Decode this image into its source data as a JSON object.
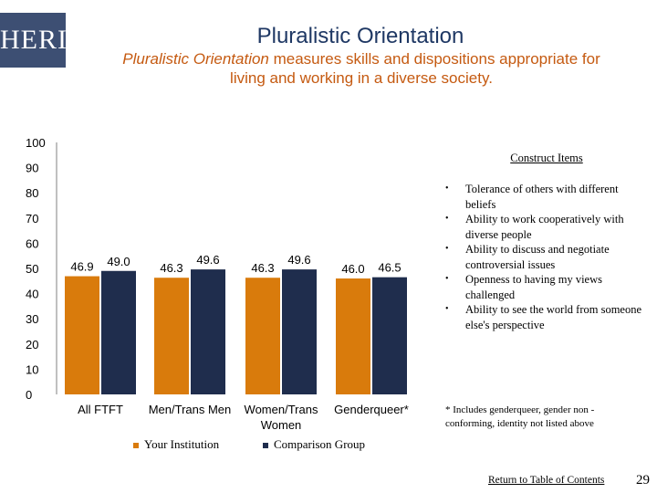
{
  "logo": {
    "text": "HERI"
  },
  "header": {
    "title": "Pluralistic Orientation",
    "subtitle_italic": "Pluralistic Orientation",
    "subtitle_line1_rest": " measures skills and dispositions appropriate for",
    "subtitle_line2": "living and working in a diverse society."
  },
  "colors": {
    "institution": "#d97b0c",
    "comparison": "#1f2d4d",
    "axis": "#808080"
  },
  "chart_data": {
    "type": "bar",
    "categories": [
      "All FTFT",
      "Men/Trans Men",
      "Women/Trans Women",
      "Genderqueer*"
    ],
    "series": [
      {
        "name": "Your Institution",
        "values": [
          46.9,
          46.3,
          46.3,
          46.0
        ]
      },
      {
        "name": "Comparison Group",
        "values": [
          49.0,
          49.6,
          49.6,
          46.5
        ]
      }
    ],
    "value_labels": [
      [
        "46.9",
        "49.0"
      ],
      [
        "46.3",
        "49.6"
      ],
      [
        "46.3",
        "49.6"
      ],
      [
        "46.0",
        "46.5"
      ]
    ],
    "ylim": [
      0,
      100
    ],
    "yticks": [
      0,
      10,
      20,
      30,
      40,
      50,
      60,
      70,
      80,
      90,
      100
    ],
    "ytick_labels": [
      "0",
      "10",
      "20",
      "30",
      "40",
      "50",
      "60",
      "70",
      "80",
      "90",
      "100"
    ],
    "category_labels": [
      [
        "All FTFT"
      ],
      [
        "Men/Trans Men"
      ],
      [
        "Women/Trans",
        "Women"
      ],
      [
        "Genderqueer*"
      ]
    ],
    "legend": [
      "Your Institution",
      "Comparison Group"
    ],
    "legend_position": "bottom"
  },
  "construct": {
    "heading": "Construct Items",
    "items": [
      "Tolerance of others with different beliefs",
      "Ability to work cooperatively with diverse people",
      "Ability to discuss and negotiate controversial issues",
      "Openness to having my views challenged",
      "Ability to see the world from someone else's perspective"
    ]
  },
  "footnote": "* Includes genderqueer, gender non - conforming, identity not listed above",
  "footer": {
    "toc_link": "Return to Table of Contents",
    "page_number": "29"
  }
}
